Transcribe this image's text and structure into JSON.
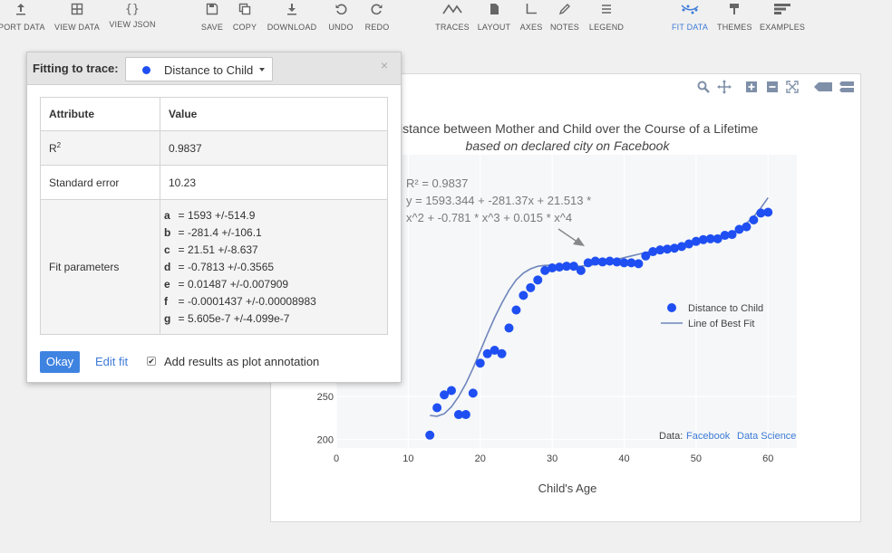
{
  "toolbar": {
    "items": [
      {
        "label": "PORT DATA",
        "icon": "upload-icon"
      },
      {
        "label": "VIEW DATA",
        "icon": "grid-icon"
      },
      {
        "label": "VIEW JSON",
        "icon": "braces-icon",
        "glyph": "{}"
      },
      {
        "label": "SAVE",
        "icon": "save-icon"
      },
      {
        "label": "COPY",
        "icon": "copy-icon"
      },
      {
        "label": "DOWNLOAD",
        "icon": "download-icon"
      },
      {
        "label": "UNDO",
        "icon": "undo-icon"
      },
      {
        "label": "REDO",
        "icon": "redo-icon"
      },
      {
        "label": "TRACES",
        "icon": "traces-icon"
      },
      {
        "label": "LAYOUT",
        "icon": "layout-icon"
      },
      {
        "label": "AXES",
        "icon": "axes-icon"
      },
      {
        "label": "NOTES",
        "icon": "notes-icon"
      },
      {
        "label": "LEGEND",
        "icon": "legend-icon"
      },
      {
        "label": "FIT DATA",
        "icon": "fit-data-icon"
      },
      {
        "label": "THEMES",
        "icon": "themes-icon"
      },
      {
        "label": "EXAMPLES",
        "icon": "examples-icon"
      }
    ],
    "active": "FIT DATA",
    "accent": "#3e7bd7"
  },
  "panel": {
    "title": "Fitting to trace:",
    "trace": "Distance to Child",
    "trace_color": "#1f4ff2",
    "close": "×",
    "table": {
      "headers": [
        "Attribute",
        "Value"
      ],
      "r2_label": "R",
      "r2_sup": "2",
      "r2_value": "0.9837",
      "stderr_label": "Standard error",
      "stderr_value": "10.23",
      "params_label": "Fit parameters",
      "params": [
        {
          "k": "a",
          "v": "1593 +/-514.9"
        },
        {
          "k": "b",
          "v": "-281.4 +/-106.1"
        },
        {
          "k": "c",
          "v": "21.51 +/-8.637"
        },
        {
          "k": "d",
          "v": "-0.7813 +/-0.3565"
        },
        {
          "k": "e",
          "v": "0.01487 +/-0.007909"
        },
        {
          "k": "f",
          "v": "-0.0001437 +/-0.00008983"
        },
        {
          "k": "g",
          "v": "5.605e-7 +/-4.099e-7"
        }
      ]
    },
    "okay": "Okay",
    "edit_fit": "Edit fit",
    "checkbox_mark": "✔",
    "checkbox_label": "Add results as plot annotation"
  },
  "chart_data": {
    "type": "scatter",
    "title": "istance between Mother and Child over the Course of a Lifetime",
    "subtitle": "based on declared city on Facebook",
    "xlabel": "Child's Age",
    "ylabel": "",
    "xlim": [
      0,
      64
    ],
    "ylim": [
      190,
      532
    ],
    "x_ticks": [
      0,
      10,
      20,
      30,
      40,
      50,
      60
    ],
    "y_ticks": [
      200,
      250
    ],
    "grid": true,
    "legend_position": "right",
    "series": [
      {
        "name": "Distance to Child",
        "mode": "markers",
        "color": "#1f4ff2",
        "x": [
          13,
          14,
          15,
          16,
          17,
          18,
          19,
          20,
          21,
          22,
          23,
          24,
          25,
          26,
          27,
          28,
          29,
          30,
          31,
          32,
          33,
          34,
          35,
          36,
          37,
          38,
          39,
          40,
          41,
          42,
          43,
          44,
          45,
          46,
          47,
          48,
          49,
          50,
          51,
          52,
          53,
          54,
          55,
          56,
          57,
          58,
          59,
          60
        ],
        "y": [
          205,
          237,
          252,
          257,
          229,
          229,
          254,
          289,
          300,
          304,
          300,
          330,
          351,
          368,
          377,
          386,
          397,
          400,
          401,
          402,
          402,
          397,
          406,
          408,
          407,
          408,
          407,
          406,
          406,
          405,
          414,
          419,
          421,
          422,
          423,
          425,
          428,
          431,
          433,
          434,
          434,
          438,
          439,
          445,
          448,
          456,
          464,
          465
        ]
      },
      {
        "name": "Line of Best Fit",
        "mode": "line",
        "color": "#6f85bb",
        "x": [
          13,
          14,
          15,
          16,
          17,
          18,
          19,
          20,
          21,
          22,
          23,
          24,
          25,
          26,
          27,
          28,
          29,
          30,
          31,
          32,
          33,
          34,
          35,
          36,
          37,
          38,
          39,
          40,
          41,
          42,
          43,
          44,
          45,
          46,
          47,
          48,
          49,
          50,
          51,
          52,
          53,
          54,
          55,
          56,
          57,
          58,
          59,
          60
        ],
        "y": [
          228,
          227,
          230,
          238,
          250,
          265,
          283,
          303,
          323,
          342,
          359,
          374,
          386,
          394,
          399,
          402,
          403,
          403,
          403,
          402,
          402,
          402,
          403,
          404,
          406,
          408,
          410,
          412,
          414,
          416,
          418,
          420,
          422,
          423,
          425,
          426,
          428,
          429,
          431,
          433,
          435,
          438,
          441,
          446,
          452,
          460,
          470,
          482
        ]
      }
    ],
    "annotation": {
      "lines": [
        "R² = 0.9837",
        "y = 1593.344 + -281.37x + 21.513 *",
        "x^2 + -0.781 * x^3 + 0.015 * x^4"
      ]
    },
    "source_label": "Data:",
    "source_links": [
      "Facebook",
      "Data Science"
    ],
    "link_color": "#3e7bd7"
  }
}
